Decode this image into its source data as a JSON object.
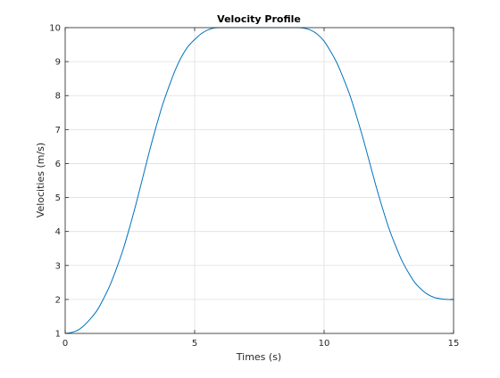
{
  "chart_data": {
    "type": "line",
    "title": "Velocity Profile",
    "xlabel": "Times (s)",
    "ylabel": "Velocities (m/s)",
    "xlim": [
      0,
      15
    ],
    "ylim": [
      1,
      10
    ],
    "xticks": [
      0,
      5,
      10,
      15
    ],
    "yticks": [
      1,
      2,
      3,
      4,
      5,
      6,
      7,
      8,
      9,
      10
    ],
    "grid": true,
    "legend": "none",
    "line_color": "#0072BD",
    "series": [
      {
        "x": [
          0,
          0.25,
          0.5,
          0.75,
          1.0,
          1.25,
          1.5,
          1.75,
          2.0,
          2.25,
          2.5,
          2.75,
          3.0,
          3.25,
          3.5,
          3.75,
          4.0,
          4.25,
          4.5,
          4.75,
          5.0,
          5.25,
          5.5,
          5.75,
          6.0,
          6.5,
          7.0,
          7.5,
          8.0,
          8.5,
          9.0,
          9.25,
          9.5,
          9.75,
          10.0,
          10.25,
          10.5,
          10.75,
          11.0,
          11.25,
          11.5,
          11.75,
          12.0,
          12.25,
          12.5,
          12.75,
          13.0,
          13.25,
          13.5,
          13.75,
          14.0,
          14.25,
          14.5,
          14.75,
          15.0
        ],
        "values": [
          1.0,
          1.03,
          1.1,
          1.25,
          1.45,
          1.7,
          2.05,
          2.45,
          2.95,
          3.5,
          4.15,
          4.85,
          5.6,
          6.35,
          7.05,
          7.7,
          8.25,
          8.75,
          9.15,
          9.45,
          9.65,
          9.82,
          9.93,
          9.99,
          10.0,
          10.0,
          10.0,
          10.0,
          10.0,
          10.0,
          10.0,
          9.98,
          9.92,
          9.8,
          9.6,
          9.3,
          8.95,
          8.5,
          8.0,
          7.4,
          6.75,
          6.05,
          5.35,
          4.7,
          4.1,
          3.6,
          3.15,
          2.8,
          2.5,
          2.3,
          2.15,
          2.06,
          2.02,
          2.0,
          2.0
        ]
      }
    ]
  }
}
